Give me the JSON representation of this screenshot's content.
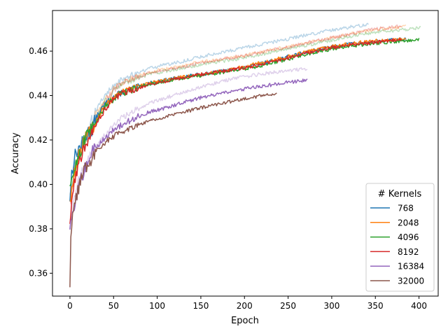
{
  "chart_data": {
    "type": "line",
    "xlabel": "Epoch",
    "ylabel": "Accuracy",
    "xlim": [
      -20,
      422
    ],
    "ylim": [
      0.3497,
      0.4783
    ],
    "xticks": [
      0,
      50,
      100,
      150,
      200,
      250,
      300,
      350,
      400
    ],
    "xtick_labels": [
      "0",
      "50",
      "100",
      "150",
      "200",
      "250",
      "300",
      "350",
      "400"
    ],
    "yticks": [
      0.36,
      0.38,
      0.4,
      0.42,
      0.44,
      0.46
    ],
    "ytick_labels": [
      "0.36",
      "0.38",
      "0.40",
      "0.42",
      "0.44",
      "0.46"
    ],
    "grid": false,
    "legend": {
      "title": "# Kernels",
      "placement": "lower-right"
    },
    "series": [
      {
        "name": "768",
        "color": "#1f77b4",
        "opacity": 1,
        "x": [
          0,
          2,
          5,
          8,
          12,
          16,
          20,
          25,
          30,
          40,
          50,
          60,
          75,
          90,
          110,
          130,
          150,
          175,
          200,
          225,
          250,
          275,
          300,
          325,
          345,
          355,
          365,
          375,
          385
        ],
        "y": [
          0.394,
          0.405,
          0.412,
          0.415,
          0.417,
          0.42,
          0.423,
          0.425,
          0.43,
          0.436,
          0.4395,
          0.4415,
          0.4435,
          0.4455,
          0.447,
          0.4485,
          0.4495,
          0.451,
          0.4525,
          0.455,
          0.4575,
          0.46,
          0.462,
          0.4635,
          0.464,
          0.4645,
          0.4648,
          0.4652,
          0.4655
        ]
      },
      {
        "name": "2048",
        "color": "#ff7f0e",
        "opacity": 1,
        "x": [
          0,
          2,
          5,
          8,
          12,
          16,
          20,
          25,
          30,
          40,
          50,
          60,
          75,
          90,
          110,
          130,
          150,
          175,
          200,
          225,
          250,
          275,
          300,
          325,
          345,
          365,
          385
        ],
        "y": [
          0.392,
          0.398,
          0.405,
          0.41,
          0.415,
          0.419,
          0.422,
          0.425,
          0.429,
          0.435,
          0.439,
          0.4415,
          0.4435,
          0.4455,
          0.447,
          0.4485,
          0.4495,
          0.451,
          0.453,
          0.4555,
          0.4575,
          0.46,
          0.462,
          0.4635,
          0.4645,
          0.465,
          0.4655
        ]
      },
      {
        "name": "4096",
        "color": "#2ca02c",
        "opacity": 1,
        "x": [
          0,
          2,
          5,
          8,
          12,
          16,
          20,
          25,
          30,
          40,
          50,
          60,
          75,
          90,
          110,
          130,
          150,
          175,
          200,
          225,
          250,
          275,
          300,
          325,
          350,
          375,
          400
        ],
        "y": [
          0.396,
          0.402,
          0.407,
          0.411,
          0.415,
          0.419,
          0.422,
          0.425,
          0.429,
          0.435,
          0.4385,
          0.441,
          0.443,
          0.445,
          0.4465,
          0.448,
          0.449,
          0.4505,
          0.452,
          0.454,
          0.4565,
          0.459,
          0.461,
          0.4625,
          0.4635,
          0.4645,
          0.4652
        ]
      },
      {
        "name": "8192",
        "color": "#d62728",
        "opacity": 1,
        "x": [
          0,
          2,
          5,
          8,
          12,
          16,
          20,
          25,
          30,
          40,
          50,
          60,
          75,
          90,
          110,
          130,
          150,
          175,
          200,
          225,
          250,
          275,
          300,
          325,
          350,
          370,
          380
        ],
        "y": [
          0.383,
          0.392,
          0.4,
          0.406,
          0.412,
          0.417,
          0.42,
          0.422,
          0.427,
          0.434,
          0.4385,
          0.441,
          0.443,
          0.445,
          0.4465,
          0.448,
          0.4495,
          0.451,
          0.4525,
          0.4545,
          0.457,
          0.4595,
          0.4615,
          0.463,
          0.464,
          0.4648,
          0.4652
        ]
      },
      {
        "name": "16384",
        "color": "#9467bd",
        "opacity": 1,
        "x": [
          0,
          2,
          5,
          8,
          12,
          16,
          20,
          25,
          30,
          40,
          50,
          60,
          75,
          90,
          110,
          130,
          150,
          175,
          200,
          225,
          250,
          272
        ],
        "y": [
          0.378,
          0.384,
          0.389,
          0.395,
          0.401,
          0.406,
          0.41,
          0.414,
          0.417,
          0.421,
          0.4245,
          0.427,
          0.43,
          0.4325,
          0.4345,
          0.437,
          0.439,
          0.441,
          0.443,
          0.4445,
          0.446,
          0.447
        ]
      },
      {
        "name": "32000",
        "color": "#8c564b",
        "opacity": 1,
        "x": [
          0,
          1,
          3,
          5,
          8,
          12,
          16,
          20,
          25,
          30,
          40,
          50,
          60,
          75,
          90,
          110,
          130,
          150,
          175,
          200,
          220,
          237
        ],
        "y": [
          0.356,
          0.376,
          0.384,
          0.389,
          0.395,
          0.401,
          0.406,
          0.409,
          0.412,
          0.415,
          0.419,
          0.4215,
          0.424,
          0.4265,
          0.4285,
          0.4305,
          0.4325,
          0.4345,
          0.4365,
          0.4385,
          0.44,
          0.441
        ]
      },
      {
        "name": "",
        "color": "#1f77b4",
        "opacity": 0.3,
        "x": [
          0,
          5,
          10,
          20,
          30,
          40,
          50,
          60,
          75,
          90,
          110,
          130,
          150,
          175,
          200,
          225,
          250,
          275,
          300,
          325,
          342
        ],
        "y": [
          0.395,
          0.408,
          0.415,
          0.424,
          0.433,
          0.44,
          0.4445,
          0.4475,
          0.45,
          0.452,
          0.454,
          0.4555,
          0.4575,
          0.4595,
          0.4615,
          0.4635,
          0.4655,
          0.4675,
          0.4695,
          0.471,
          0.4722
        ]
      },
      {
        "name": "",
        "color": "#ff7f0e",
        "opacity": 0.3,
        "x": [
          0,
          5,
          10,
          20,
          30,
          40,
          50,
          60,
          75,
          90,
          110,
          130,
          150,
          175,
          200,
          225,
          250,
          275,
          300,
          325,
          350,
          375,
          385
        ],
        "y": [
          0.393,
          0.405,
          0.413,
          0.422,
          0.431,
          0.438,
          0.443,
          0.446,
          0.4485,
          0.4505,
          0.452,
          0.4535,
          0.455,
          0.4565,
          0.458,
          0.46,
          0.462,
          0.464,
          0.466,
          0.468,
          0.4695,
          0.4705,
          0.471
        ]
      },
      {
        "name": "",
        "color": "#2ca02c",
        "opacity": 0.3,
        "x": [
          0,
          5,
          10,
          20,
          30,
          40,
          50,
          60,
          75,
          90,
          110,
          130,
          150,
          175,
          200,
          225,
          250,
          275,
          300,
          325,
          350,
          375,
          402
        ],
        "y": [
          0.394,
          0.406,
          0.413,
          0.422,
          0.43,
          0.437,
          0.442,
          0.445,
          0.4475,
          0.4495,
          0.451,
          0.4525,
          0.454,
          0.4555,
          0.457,
          0.459,
          0.461,
          0.463,
          0.465,
          0.467,
          0.4685,
          0.4695,
          0.4705
        ]
      },
      {
        "name": "",
        "color": "#d62728",
        "opacity": 0.3,
        "x": [
          0,
          5,
          10,
          20,
          30,
          40,
          50,
          60,
          75,
          90,
          110,
          130,
          150,
          175,
          200,
          225,
          250,
          275,
          300,
          325,
          350,
          380
        ],
        "y": [
          0.392,
          0.404,
          0.412,
          0.421,
          0.43,
          0.437,
          0.4425,
          0.4455,
          0.448,
          0.45,
          0.4515,
          0.453,
          0.4545,
          0.4565,
          0.458,
          0.46,
          0.462,
          0.464,
          0.466,
          0.468,
          0.47,
          0.4712
        ]
      },
      {
        "name": "",
        "color": "#9467bd",
        "opacity": 0.3,
        "x": [
          0,
          5,
          10,
          20,
          30,
          40,
          50,
          60,
          75,
          90,
          110,
          130,
          150,
          175,
          200,
          225,
          250,
          272
        ],
        "y": [
          0.383,
          0.395,
          0.403,
          0.411,
          0.417,
          0.422,
          0.4265,
          0.43,
          0.4335,
          0.4365,
          0.439,
          0.4415,
          0.444,
          0.4465,
          0.4485,
          0.45,
          0.4512,
          0.452
        ]
      }
    ]
  }
}
